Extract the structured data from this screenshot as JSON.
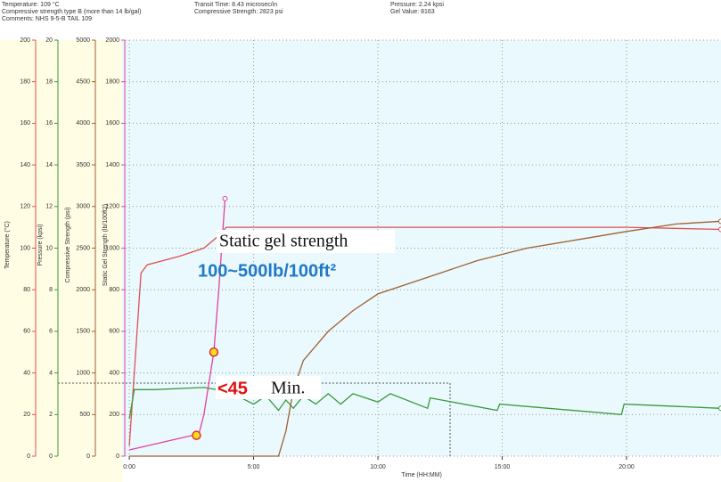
{
  "header": {
    "left": [
      "Temperature: 109 °C",
      "Compressive strength type B (more than 14 lb/gal)",
      "Comments: NHS 9-5-B TAIL 109"
    ],
    "middle": [
      "Transit Time: 8.43 microsec/in",
      "Compressive Strength: 2823 psi"
    ],
    "right": [
      "Pressure: 2.24 kpsi",
      "Gel Value: 8163"
    ]
  },
  "chart_data": {
    "type": "line",
    "x_label": "Time (HH:MM)",
    "xlim": [
      -0.29,
      23.8
    ],
    "xticks": [
      {
        "value": 0,
        "label": "0:00"
      },
      {
        "value": 5,
        "label": "5:00"
      },
      {
        "value": 10,
        "label": "10:00"
      },
      {
        "value": 15,
        "label": "15:00"
      },
      {
        "value": 20,
        "label": "20:00"
      }
    ],
    "grid": true,
    "axes": [
      {
        "label": "Temperature (°C)",
        "color": "#e05050",
        "ylim": [
          0,
          200
        ],
        "yticks": [
          0,
          20,
          40,
          60,
          80,
          100,
          120,
          140,
          160,
          180,
          200
        ]
      },
      {
        "label": "Pressure (kpsi)",
        "color": "#3a9a3a",
        "ylim": [
          0,
          20
        ],
        "yticks": [
          0,
          2,
          4,
          6,
          8,
          10,
          12,
          14,
          16,
          18,
          20
        ]
      },
      {
        "label": "Compressive Strength (psi)",
        "color": "#a06030",
        "ylim": [
          0,
          5000
        ],
        "yticks": [
          0,
          500,
          1000,
          1500,
          2000,
          2500,
          3000,
          3500,
          4000,
          4500,
          5000
        ]
      },
      {
        "label": "Static Gel Strength (lb/100ft2)",
        "color": "#e040a0",
        "ylim": [
          0,
          2000
        ],
        "yticks": [
          0,
          200,
          400,
          600,
          800,
          1000,
          1200,
          1400,
          1600,
          1800,
          2000
        ]
      }
    ],
    "series": [
      {
        "name": "Temperature",
        "axis": 0,
        "color": "#e05050",
        "x": [
          0,
          0.2,
          0.47,
          0.72,
          2.0,
          3.0,
          3.6,
          3.9,
          10,
          20,
          23.8
        ],
        "values": [
          5,
          40,
          88,
          92,
          96,
          100,
          106,
          110,
          110,
          110,
          109
        ]
      },
      {
        "name": "Pressure",
        "axis": 1,
        "color": "#3a9a3a",
        "x": [
          0,
          0.2,
          1,
          3,
          4,
          5,
          5.5,
          6,
          6.3,
          6.6,
          7,
          7.5,
          8,
          8.5,
          9,
          10,
          10.5,
          12,
          12.1,
          14.8,
          14.9,
          19.8,
          19.9,
          23.8
        ],
        "values": [
          1.8,
          3.2,
          3.2,
          3.3,
          3.1,
          2.5,
          2.9,
          2.2,
          2.7,
          2.3,
          2.9,
          2.5,
          3.0,
          2.5,
          3.0,
          2.6,
          3.0,
          2.3,
          2.8,
          2.2,
          2.5,
          2.0,
          2.5,
          2.3
        ]
      },
      {
        "name": "Compressive Strength",
        "axis": 2,
        "color": "#a06030",
        "x": [
          0,
          6.0,
          6.3,
          6.6,
          7,
          8,
          9,
          10,
          12,
          14,
          16,
          18,
          20,
          22,
          23.8
        ],
        "values": [
          0,
          0,
          300,
          800,
          1150,
          1500,
          1750,
          1950,
          2150,
          2350,
          2500,
          2600,
          2700,
          2790,
          2823
        ]
      },
      {
        "name": "Static Gel Strength",
        "axis": 3,
        "color": "#e040a0",
        "x": [
          0,
          2.8,
          3.0,
          3.4,
          3.6,
          3.85
        ],
        "values": [
          30,
          107,
          200,
          500,
          800,
          1238
        ]
      }
    ],
    "markers": [
      {
        "axis": 3,
        "x": 2.7,
        "value": 100
      },
      {
        "axis": 3,
        "x": 3.4,
        "value": 500
      }
    ],
    "annotations": [
      "Static gel strength",
      "100~500lb/100ft²",
      "<45",
      "Min."
    ]
  }
}
